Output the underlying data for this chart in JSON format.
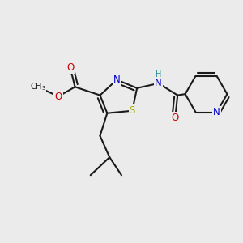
{
  "bg_color": "#ebebeb",
  "bond_color": "#1a1a1a",
  "bond_width": 1.5,
  "atom_colors": {
    "N": "#0000cc",
    "O": "#cc0000",
    "S": "#aaaa00",
    "H": "#2a9090",
    "C": "#1a1a1a"
  },
  "font_size": 8.5,
  "font_size_small": 7.0
}
